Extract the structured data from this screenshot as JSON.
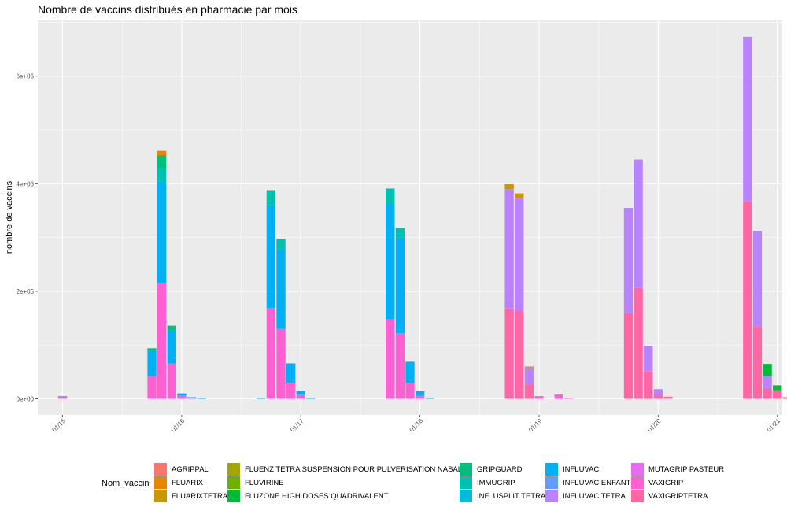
{
  "chart_data": {
    "type": "bar",
    "title": "Nombre de vaccins distribués en pharmacie par mois",
    "xlabel": "",
    "ylabel": "nombre de vaccins",
    "y_ticks": [
      0,
      2000000,
      4000000,
      6000000
    ],
    "y_tick_labels": [
      "0e+00",
      "2e+06",
      "4e+06",
      "6e+06"
    ],
    "ylim": [
      -300000,
      7050000
    ],
    "x_ticks": [
      "01/15",
      "01/16",
      "01/17",
      "01/18",
      "01/19",
      "01/20",
      "01/21"
    ],
    "grid": true,
    "legend_title": "Nom_vaccin",
    "legend_position": "bottom",
    "series": [
      {
        "name": "AGRIPPAL",
        "color": "#F8766D"
      },
      {
        "name": "FLUARIX",
        "color": "#E58700"
      },
      {
        "name": "FLUARIXTETRA",
        "color": "#C99800"
      },
      {
        "name": "FLUENZ TETRA SUSPENSION POUR PULVERISATION NASALE",
        "color": "#A3A500"
      },
      {
        "name": "FLUVIRINE",
        "color": "#6BB100"
      },
      {
        "name": "FLUZONE HIGH DOSES QUADRIVALENT",
        "color": "#00BA38"
      },
      {
        "name": "GRIPGUARD",
        "color": "#00BF7D"
      },
      {
        "name": "IMMUGRIP",
        "color": "#00C0AF"
      },
      {
        "name": "INFLUSPLIT TETRA",
        "color": "#00BCD8"
      },
      {
        "name": "INFLUVAC",
        "color": "#00B0F6"
      },
      {
        "name": "INFLUVAC ENFANT",
        "color": "#619CFF"
      },
      {
        "name": "INFLUVAC TETRA",
        "color": "#B983FF"
      },
      {
        "name": "MUTAGRIP PASTEUR",
        "color": "#E76BF3"
      },
      {
        "name": "VAXIGRIP",
        "color": "#FD61D1"
      },
      {
        "name": "VAXIGRIPTETRA",
        "color": "#FF67A4"
      }
    ],
    "bars": [
      {
        "month": "2015-01",
        "stack": [
          {
            "s": "VAXIGRIP",
            "v": 30000
          },
          {
            "s": "INFLUVAC ENFANT",
            "v": 20000
          }
        ]
      },
      {
        "month": "2015-10",
        "stack": [
          {
            "s": "VAXIGRIP",
            "v": 420000
          },
          {
            "s": "INFLUVAC",
            "v": 480000
          },
          {
            "s": "GRIPGUARD",
            "v": 40000
          }
        ]
      },
      {
        "month": "2015-11",
        "stack": [
          {
            "s": "VAXIGRIP",
            "v": 2160000
          },
          {
            "s": "INFLUVAC",
            "v": 1880000
          },
          {
            "s": "IMMUGRIP",
            "v": 250000
          },
          {
            "s": "GRIPGUARD",
            "v": 240000
          },
          {
            "s": "FLUARIX",
            "v": 80000
          }
        ]
      },
      {
        "month": "2015-12",
        "stack": [
          {
            "s": "VAXIGRIP",
            "v": 660000
          },
          {
            "s": "INFLUVAC",
            "v": 620000
          },
          {
            "s": "GRIPGUARD",
            "v": 80000
          }
        ]
      },
      {
        "month": "2016-01",
        "stack": [
          {
            "s": "VAXIGRIP",
            "v": 60000
          },
          {
            "s": "INFLUVAC",
            "v": 40000
          }
        ]
      },
      {
        "month": "2016-02",
        "stack": [
          {
            "s": "VAXIGRIP",
            "v": 15000
          },
          {
            "s": "INFLUVAC",
            "v": 15000
          }
        ]
      },
      {
        "month": "2016-03",
        "stack": [
          {
            "s": "INFLUVAC",
            "v": 10000
          }
        ]
      },
      {
        "month": "2016-09",
        "stack": [
          {
            "s": "INFLUVAC",
            "v": 15000
          }
        ]
      },
      {
        "month": "2016-10",
        "stack": [
          {
            "s": "VAXIGRIP",
            "v": 1690000
          },
          {
            "s": "INFLUVAC",
            "v": 1910000
          },
          {
            "s": "IMMUGRIP",
            "v": 280000
          }
        ]
      },
      {
        "month": "2016-11",
        "stack": [
          {
            "s": "VAXIGRIP",
            "v": 1300000
          },
          {
            "s": "INFLUVAC",
            "v": 1480000
          },
          {
            "s": "IMMUGRIP",
            "v": 200000
          }
        ]
      },
      {
        "month": "2016-12",
        "stack": [
          {
            "s": "VAXIGRIP",
            "v": 300000
          },
          {
            "s": "INFLUVAC",
            "v": 360000
          }
        ]
      },
      {
        "month": "2017-01",
        "stack": [
          {
            "s": "VAXIGRIP",
            "v": 80000
          },
          {
            "s": "INFLUVAC",
            "v": 70000
          }
        ]
      },
      {
        "month": "2017-02",
        "stack": [
          {
            "s": "INFLUVAC",
            "v": 15000
          }
        ]
      },
      {
        "month": "2017-10",
        "stack": [
          {
            "s": "VAXIGRIP",
            "v": 1480000
          },
          {
            "s": "INFLUVAC",
            "v": 2150000
          },
          {
            "s": "IMMUGRIP",
            "v": 280000
          }
        ]
      },
      {
        "month": "2017-11",
        "stack": [
          {
            "s": "VAXIGRIP",
            "v": 1220000
          },
          {
            "s": "INFLUVAC",
            "v": 1780000
          },
          {
            "s": "IMMUGRIP",
            "v": 180000
          }
        ]
      },
      {
        "month": "2017-12",
        "stack": [
          {
            "s": "VAXIGRIP",
            "v": 300000
          },
          {
            "s": "INFLUVAC",
            "v": 390000
          }
        ]
      },
      {
        "month": "2018-01",
        "stack": [
          {
            "s": "VAXIGRIP",
            "v": 60000
          },
          {
            "s": "INFLUVAC",
            "v": 80000
          }
        ]
      },
      {
        "month": "2018-02",
        "stack": [
          {
            "s": "INFLUVAC",
            "v": 15000
          }
        ]
      },
      {
        "month": "2018-10",
        "stack": [
          {
            "s": "VAXIGRIPTETRA",
            "v": 1680000
          },
          {
            "s": "INFLUVAC TETRA",
            "v": 2220000
          },
          {
            "s": "FLUARIXTETRA",
            "v": 90000
          }
        ]
      },
      {
        "month": "2018-11",
        "stack": [
          {
            "s": "VAXIGRIPTETRA",
            "v": 1640000
          },
          {
            "s": "INFLUVAC TETRA",
            "v": 2090000
          },
          {
            "s": "FLUARIXTETRA",
            "v": 90000
          }
        ]
      },
      {
        "month": "2018-12",
        "stack": [
          {
            "s": "VAXIGRIPTETRA",
            "v": 270000
          },
          {
            "s": "INFLUVAC TETRA",
            "v": 310000
          },
          {
            "s": "FLUARIXTETRA",
            "v": 20000
          }
        ]
      },
      {
        "month": "2019-01",
        "stack": [
          {
            "s": "VAXIGRIP",
            "v": 50000
          }
        ]
      },
      {
        "month": "2019-03",
        "stack": [
          {
            "s": "VAXIGRIP",
            "v": 80000
          }
        ]
      },
      {
        "month": "2019-04",
        "stack": [
          {
            "s": "VAXIGRIP",
            "v": 20000
          }
        ]
      },
      {
        "month": "2019-10",
        "stack": [
          {
            "s": "VAXIGRIPTETRA",
            "v": 1600000
          },
          {
            "s": "INFLUVAC TETRA",
            "v": 1950000
          }
        ]
      },
      {
        "month": "2019-11",
        "stack": [
          {
            "s": "VAXIGRIPTETRA",
            "v": 2060000
          },
          {
            "s": "INFLUVAC TETRA",
            "v": 2390000
          }
        ]
      },
      {
        "month": "2019-12",
        "stack": [
          {
            "s": "VAXIGRIPTETRA",
            "v": 510000
          },
          {
            "s": "INFLUVAC TETRA",
            "v": 470000
          }
        ]
      },
      {
        "month": "2020-01",
        "stack": [
          {
            "s": "VAXIGRIPTETRA",
            "v": 80000
          },
          {
            "s": "INFLUVAC TETRA",
            "v": 100000
          }
        ]
      },
      {
        "month": "2020-02",
        "stack": [
          {
            "s": "VAXIGRIPTETRA",
            "v": 40000
          }
        ]
      },
      {
        "month": "2020-10",
        "stack": [
          {
            "s": "VAXIGRIPTETRA",
            "v": 3670000
          },
          {
            "s": "INFLUVAC TETRA",
            "v": 3060000
          }
        ]
      },
      {
        "month": "2020-11",
        "stack": [
          {
            "s": "VAXIGRIPTETRA",
            "v": 1350000
          },
          {
            "s": "INFLUVAC TETRA",
            "v": 1770000
          }
        ]
      },
      {
        "month": "2020-12",
        "stack": [
          {
            "s": "VAXIGRIPTETRA",
            "v": 200000
          },
          {
            "s": "INFLUVAC TETRA",
            "v": 230000
          },
          {
            "s": "FLUZONE HIGH DOSES QUADRIVALENT",
            "v": 220000
          }
        ]
      },
      {
        "month": "2021-01",
        "stack": [
          {
            "s": "VAXIGRIPTETRA",
            "v": 160000
          },
          {
            "s": "FLUZONE HIGH DOSES QUADRIVALENT",
            "v": 90000
          }
        ]
      },
      {
        "month": "2021-02",
        "stack": [
          {
            "s": "VAXIGRIPTETRA",
            "v": 30000
          }
        ]
      }
    ]
  }
}
